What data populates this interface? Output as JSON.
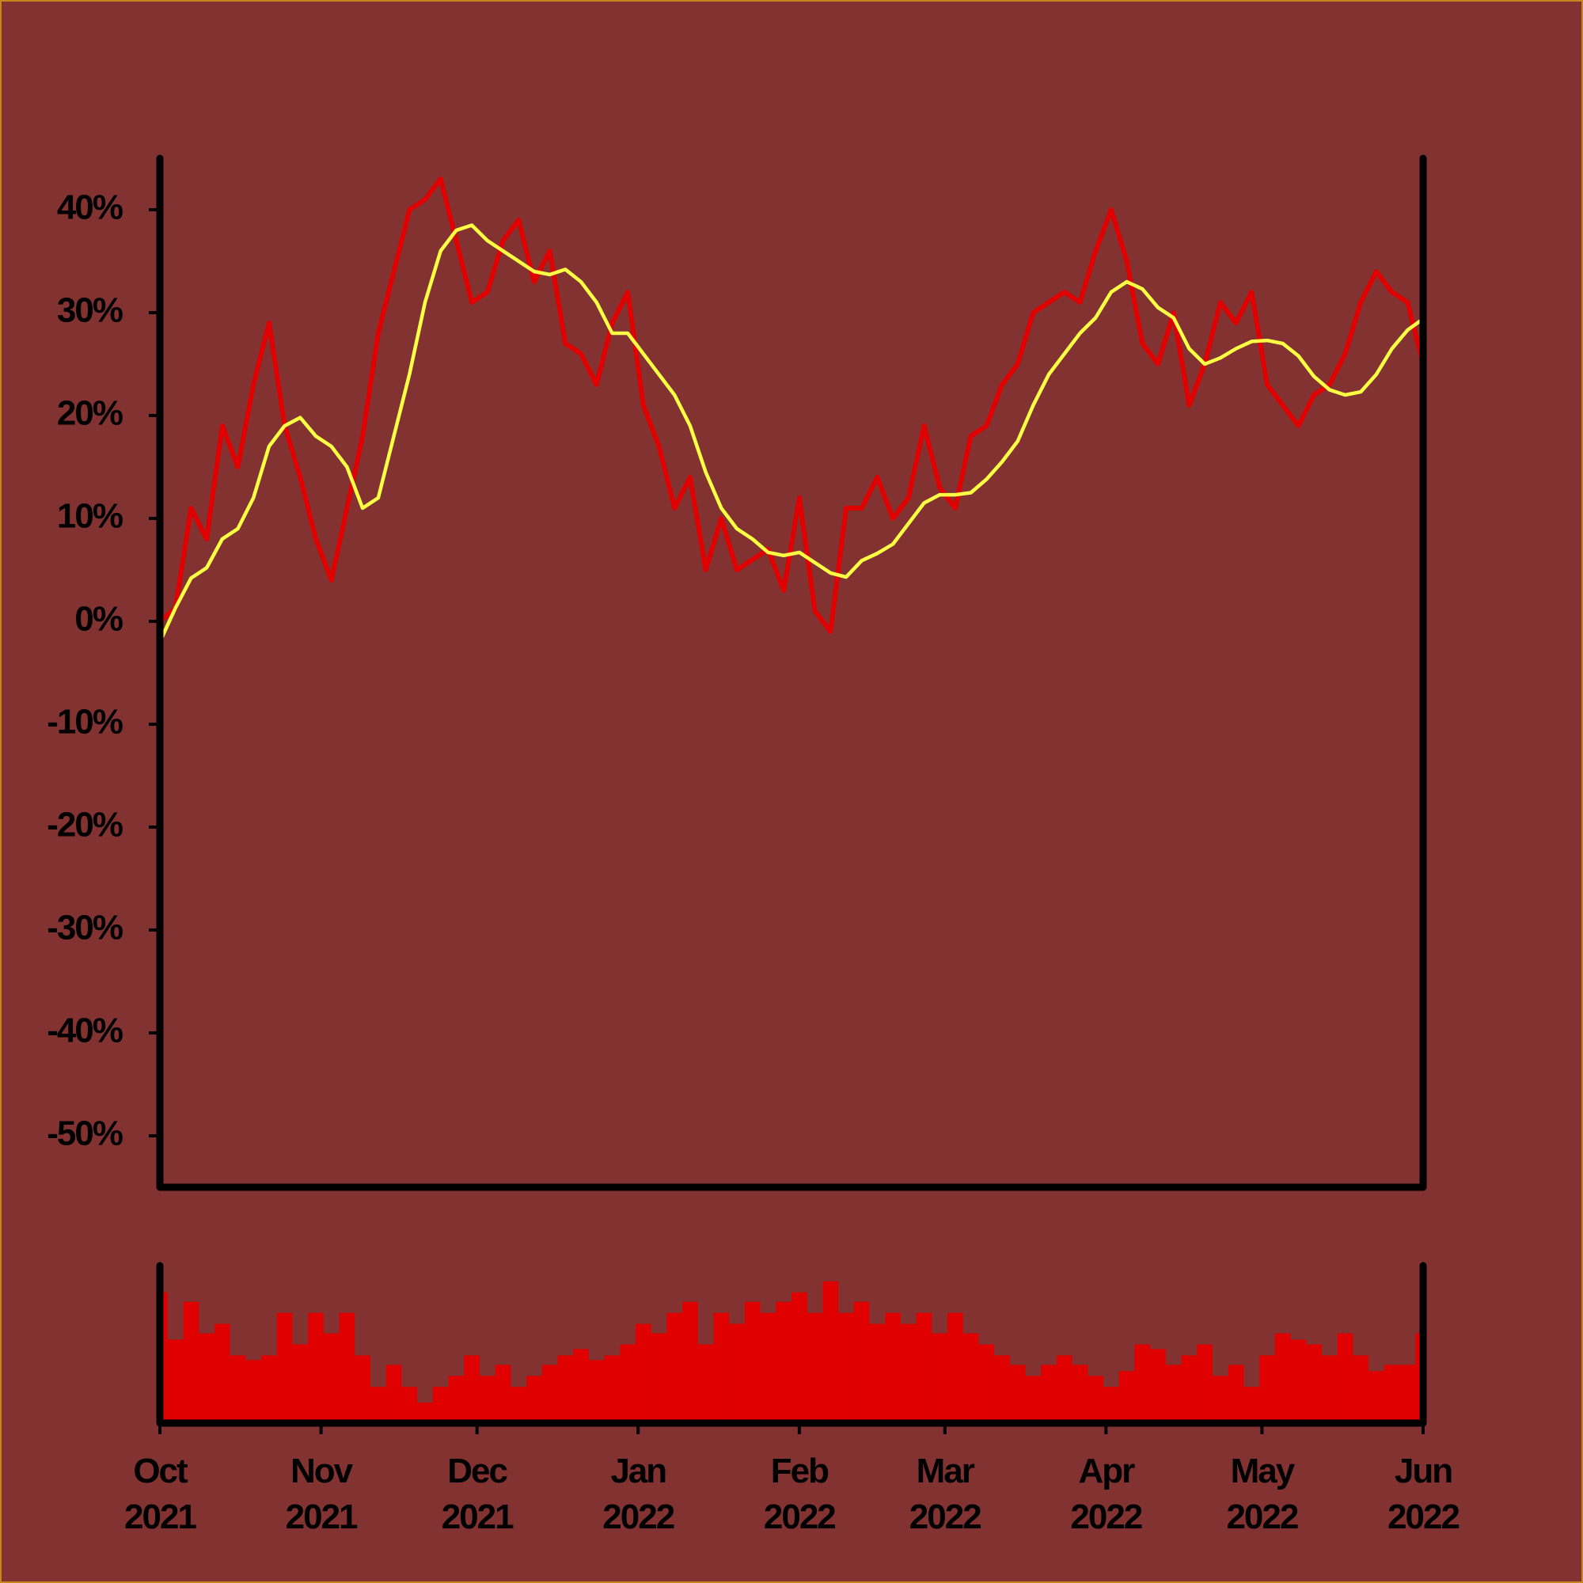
{
  "chart_data": [
    {
      "type": "line",
      "x": [
        0,
        3,
        6,
        9,
        12,
        15,
        18,
        21,
        24,
        27,
        30,
        33,
        36,
        39,
        42,
        45,
        48,
        51,
        54,
        57,
        60,
        63,
        66,
        69,
        72,
        75,
        78,
        81,
        84,
        87,
        90,
        93,
        96,
        99,
        102,
        105,
        108,
        111,
        114,
        117,
        120,
        123,
        126,
        129,
        132,
        135,
        138,
        141,
        144,
        147,
        150,
        153,
        156,
        159,
        162,
        165,
        168,
        171,
        174,
        177,
        180,
        183,
        186,
        189,
        192,
        195,
        198,
        201,
        204,
        207,
        210,
        213,
        216,
        219,
        222,
        225,
        228,
        231,
        234,
        237,
        240,
        243
      ],
      "xlim": [
        0,
        243
      ],
      "ylim": [
        -55,
        45
      ],
      "yticks": [
        {
          "value": -50,
          "label": "-50%"
        },
        {
          "value": -40,
          "label": "-40%"
        },
        {
          "value": -30,
          "label": "-30%"
        },
        {
          "value": -20,
          "label": "-20%"
        },
        {
          "value": -10,
          "label": "-10%"
        },
        {
          "value": 0,
          "label": "0%"
        },
        {
          "value": 10,
          "label": "10%"
        },
        {
          "value": 20,
          "label": "20%"
        },
        {
          "value": 30,
          "label": "30%"
        },
        {
          "value": 40,
          "label": "40%"
        }
      ],
      "series": [
        {
          "color": "#e00000",
          "values": [
            0,
            1.3,
            11,
            8,
            19,
            15,
            23,
            29,
            19,
            14,
            8,
            4,
            11,
            18,
            28,
            34,
            40,
            41,
            43,
            37,
            31,
            32,
            37,
            39,
            33,
            36,
            27,
            26,
            23,
            29,
            32,
            21,
            17,
            11,
            14,
            5,
            10,
            5,
            6,
            7,
            3,
            12,
            1,
            -1,
            11,
            11,
            14,
            10,
            12,
            19,
            13,
            11,
            18,
            19,
            23,
            25,
            30,
            31,
            32,
            31,
            36,
            40,
            35,
            27,
            25,
            30,
            21,
            25,
            31,
            29,
            32,
            23,
            21,
            19,
            22,
            23,
            26,
            31,
            34,
            32,
            31,
            25
          ]
        },
        {
          "color": "#ffff44",
          "values": [
            -2,
            1.3,
            4.2,
            5.2,
            8,
            9,
            12,
            17,
            19,
            19.8,
            18,
            17,
            15,
            11,
            12,
            18,
            24,
            31,
            36,
            38,
            38.5,
            37,
            36,
            35,
            34,
            33.7,
            34.2,
            33,
            31,
            28,
            28,
            26,
            24,
            22,
            19,
            14.5,
            11,
            9,
            8,
            6.7,
            6.4,
            6.7,
            5.7,
            4.7,
            4.3,
            5.9,
            6.6,
            7.5,
            9.5,
            11.5,
            12.3,
            12.3,
            12.5,
            13.8,
            15.5,
            17.5,
            21,
            24,
            26,
            28,
            29.5,
            32,
            33,
            32.3,
            30.5,
            29.5,
            26.5,
            25,
            25.6,
            26.5,
            27.2,
            27.3,
            27,
            25.8,
            23.8,
            22.5,
            22,
            22.3,
            24,
            26.5,
            28.3,
            29.4
          ]
        }
      ]
    },
    {
      "type": "bar",
      "x": [
        0,
        3,
        6,
        9,
        12,
        15,
        18,
        21,
        24,
        27,
        30,
        33,
        36,
        39,
        42,
        45,
        48,
        51,
        54,
        57,
        60,
        63,
        66,
        69,
        72,
        75,
        78,
        81,
        84,
        87,
        90,
        93,
        96,
        99,
        102,
        105,
        108,
        111,
        114,
        117,
        120,
        123,
        126,
        129,
        132,
        135,
        138,
        141,
        144,
        147,
        150,
        153,
        156,
        159,
        162,
        165,
        168,
        171,
        174,
        177,
        180,
        183,
        186,
        189,
        192,
        195,
        198,
        201,
        204,
        207,
        210,
        213,
        216,
        219,
        222,
        225,
        228,
        231,
        234,
        237,
        240,
        243
      ],
      "xlim": [
        0,
        243
      ],
      "xticks": [
        {
          "value": 0,
          "label": "Oct\n2021"
        },
        {
          "value": 31,
          "label": "Nov\n2021"
        },
        {
          "value": 61,
          "label": "Dec\n2021"
        },
        {
          "value": 92,
          "label": "Jan\n2022"
        },
        {
          "value": 123,
          "label": "Feb\n2022"
        },
        {
          "value": 151,
          "label": "Mar\n2022"
        },
        {
          "value": 182,
          "label": "Apr\n2022"
        },
        {
          "value": 212,
          "label": "May\n2022"
        },
        {
          "value": 243,
          "label": "Jun\n2022"
        }
      ],
      "ylim": [
        0,
        100
      ],
      "color": "#e00000",
      "values": [
        83,
        53,
        77,
        57,
        63,
        43,
        40,
        43,
        70,
        50,
        70,
        57,
        70,
        43,
        23,
        37,
        23,
        13,
        23,
        30,
        43,
        30,
        37,
        23,
        30,
        37,
        43,
        47,
        40,
        43,
        50,
        63,
        57,
        70,
        77,
        50,
        70,
        63,
        77,
        70,
        77,
        83,
        70,
        90,
        70,
        77,
        63,
        70,
        63,
        70,
        57,
        70,
        57,
        50,
        43,
        37,
        30,
        37,
        43,
        37,
        30,
        23,
        33,
        50,
        47,
        37,
        43,
        50,
        30,
        37,
        23,
        43,
        57,
        53,
        50,
        43,
        57,
        43,
        33,
        37,
        37,
        57
      ]
    }
  ]
}
